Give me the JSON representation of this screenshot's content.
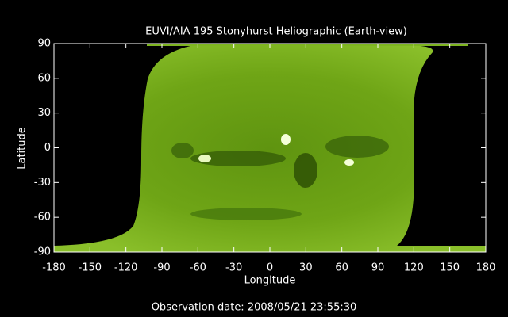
{
  "chart_data": {
    "type": "image",
    "title": "EUVI/AIA 195 Stonyhurst Heliographic (Earth-view)",
    "xlabel": "Longitude",
    "ylabel": "Latitude",
    "footer": "Observation date: 2008/05/21 23:55:30",
    "xlim": [
      -180,
      180
    ],
    "ylim": [
      -90,
      90
    ],
    "xticks": [
      -180,
      -150,
      -120,
      -90,
      -60,
      -30,
      0,
      30,
      60,
      90,
      120,
      150,
      180
    ],
    "yticks": [
      -90,
      -60,
      -30,
      0,
      30,
      60,
      90
    ]
  }
}
